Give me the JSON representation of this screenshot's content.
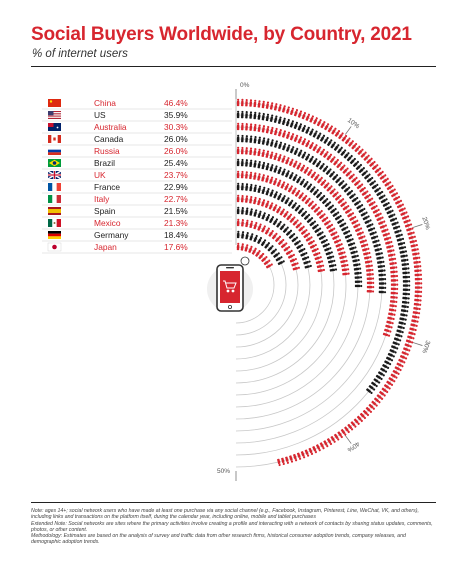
{
  "header": {
    "title": "Social Buyers Worldwide, by Country, 2021",
    "subtitle": "% of internet users"
  },
  "notes": {
    "note": "Note: ages 14+; social network users who have made at least one purchase via any social channel (e.g., Facebook, Instagram, Pinterest, Line, WeChat, VK, and others), including links and transactions on the platform itself, during the calendar year, including online, mobile and tablet purchases",
    "extended": "Extended Note: Social networks are sites where the primary activities involve creating a profile and interacting with a network of contacts by sharing status updates, comments, photos, or other content.",
    "methodology": "Methodology: Estimates are based on the analysis of survey and traffic data from other research firms, historical consumer adoption trends, company releases, and demographic adoption trends."
  },
  "colors": {
    "accent": "#d7262f",
    "dark": "#1a1a1a",
    "ring": "#c8c8c8"
  },
  "chart_data": {
    "type": "bar",
    "orientation": "radial",
    "title": "Social Buyers Worldwide, by Country, 2021",
    "subtitle": "% of internet users",
    "axis_ticks": [
      "0%",
      "10%",
      "20%",
      "30%",
      "40%",
      "50%"
    ],
    "axis_range": [
      0,
      50
    ],
    "rows": [
      {
        "country": "China",
        "value": 46.4,
        "label": "46.4%",
        "flag": "china-flag",
        "highlight": true
      },
      {
        "country": "US",
        "value": 35.9,
        "label": "35.9%",
        "flag": "us-flag",
        "highlight": false
      },
      {
        "country": "Australia",
        "value": 30.3,
        "label": "30.3%",
        "flag": "australia-flag",
        "highlight": true
      },
      {
        "country": "Canada",
        "value": 26.0,
        "label": "26.0%",
        "flag": "canada-flag",
        "highlight": false
      },
      {
        "country": "Russia",
        "value": 26.0,
        "label": "26.0%",
        "flag": "russia-flag",
        "highlight": true
      },
      {
        "country": "Brazil",
        "value": 25.4,
        "label": "25.4%",
        "flag": "brazil-flag",
        "highlight": false
      },
      {
        "country": "UK",
        "value": 23.7,
        "label": "23.7%",
        "flag": "uk-flag",
        "highlight": true
      },
      {
        "country": "France",
        "value": 22.9,
        "label": "22.9%",
        "flag": "france-flag",
        "highlight": false
      },
      {
        "country": "Italy",
        "value": 22.7,
        "label": "22.7%",
        "flag": "italy-flag",
        "highlight": true
      },
      {
        "country": "Spain",
        "value": 21.5,
        "label": "21.5%",
        "flag": "spain-flag",
        "highlight": false
      },
      {
        "country": "Mexico",
        "value": 21.3,
        "label": "21.3%",
        "flag": "mexico-flag",
        "highlight": true
      },
      {
        "country": "Germany",
        "value": 18.4,
        "label": "18.4%",
        "flag": "germany-flag",
        "highlight": false
      },
      {
        "country": "Japan",
        "value": 17.6,
        "label": "17.6%",
        "flag": "japan-flag",
        "highlight": true
      }
    ]
  }
}
